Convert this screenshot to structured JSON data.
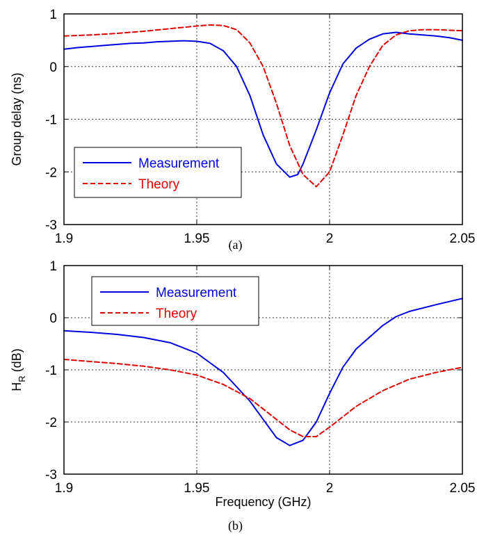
{
  "chart_data": [
    {
      "type": "line",
      "caption": "(a)",
      "xlabel": "",
      "ylabel": "Group delay (ns)",
      "xlim": [
        1.9,
        2.05
      ],
      "ylim": [
        -3,
        1
      ],
      "xticks": [
        1.9,
        1.95,
        2,
        2.05
      ],
      "xtick_labels": [
        "1.9",
        "1.95",
        "2",
        "2.05"
      ],
      "yticks": [
        -3,
        -2,
        -1,
        0,
        1
      ],
      "ytick_labels": [
        "-3",
        "-2",
        "-1",
        "0",
        "1"
      ],
      "grid": true,
      "legend_position": "lower-left",
      "series": [
        {
          "name": "Measurement",
          "color": "#0000dd",
          "style": "solid",
          "x": [
            1.9,
            1.905,
            1.91,
            1.915,
            1.92,
            1.925,
            1.93,
            1.935,
            1.94,
            1.945,
            1.95,
            1.955,
            1.96,
            1.965,
            1.97,
            1.975,
            1.98,
            1.985,
            1.988,
            1.99,
            1.995,
            2.0,
            2.005,
            2.01,
            2.015,
            2.02,
            2.025,
            2.03,
            2.035,
            2.04,
            2.045,
            2.05
          ],
          "y": [
            0.33,
            0.36,
            0.38,
            0.4,
            0.42,
            0.44,
            0.45,
            0.47,
            0.48,
            0.49,
            0.48,
            0.44,
            0.3,
            0.0,
            -0.55,
            -1.3,
            -1.85,
            -2.1,
            -2.05,
            -1.85,
            -1.2,
            -0.5,
            0.05,
            0.35,
            0.52,
            0.62,
            0.65,
            0.62,
            0.6,
            0.58,
            0.55,
            0.5
          ]
        },
        {
          "name": "Theory",
          "color": "#dd0000",
          "style": "dashed",
          "x": [
            1.9,
            1.91,
            1.92,
            1.93,
            1.94,
            1.95,
            1.955,
            1.96,
            1.965,
            1.97,
            1.975,
            1.98,
            1.985,
            1.99,
            1.995,
            2.0,
            2.005,
            2.01,
            2.015,
            2.02,
            2.025,
            2.03,
            2.035,
            2.04,
            2.05
          ],
          "y": [
            0.58,
            0.6,
            0.63,
            0.67,
            0.72,
            0.77,
            0.79,
            0.78,
            0.7,
            0.45,
            0.0,
            -0.7,
            -1.5,
            -2.05,
            -2.28,
            -2.0,
            -1.3,
            -0.55,
            0.0,
            0.4,
            0.6,
            0.68,
            0.7,
            0.7,
            0.68
          ]
        }
      ]
    },
    {
      "type": "line",
      "caption": "(b)",
      "xlabel": "Frequency (GHz)",
      "ylabel": "H",
      "ylabel_sub": "R",
      "ylabel_suffix": " (dB)",
      "xlim": [
        1.9,
        2.05
      ],
      "ylim": [
        -3,
        1
      ],
      "xticks": [
        1.9,
        1.95,
        2,
        2.05
      ],
      "xtick_labels": [
        "1.9",
        "1.95",
        "2",
        "2.05"
      ],
      "yticks": [
        -3,
        -2,
        -1,
        0,
        1
      ],
      "ytick_labels": [
        "-3",
        "-2",
        "-1",
        "0",
        "1"
      ],
      "grid": true,
      "legend_position": "top-left",
      "series": [
        {
          "name": "Measurement",
          "color": "#0000dd",
          "style": "solid",
          "x": [
            1.9,
            1.91,
            1.92,
            1.93,
            1.94,
            1.95,
            1.96,
            1.97,
            1.975,
            1.98,
            1.985,
            1.99,
            1.995,
            2.0,
            2.005,
            2.01,
            2.02,
            2.025,
            2.03,
            2.04,
            2.05
          ],
          "y": [
            -0.25,
            -0.28,
            -0.32,
            -0.38,
            -0.48,
            -0.68,
            -1.05,
            -1.6,
            -1.95,
            -2.3,
            -2.45,
            -2.35,
            -2.0,
            -1.45,
            -0.95,
            -0.6,
            -0.15,
            0.02,
            0.12,
            0.25,
            0.37
          ]
        },
        {
          "name": "Theory",
          "color": "#dd0000",
          "style": "dashed",
          "x": [
            1.9,
            1.91,
            1.92,
            1.93,
            1.94,
            1.95,
            1.96,
            1.97,
            1.98,
            1.985,
            1.99,
            1.995,
            2.0,
            2.01,
            2.02,
            2.03,
            2.04,
            2.05
          ],
          "y": [
            -0.8,
            -0.84,
            -0.88,
            -0.93,
            -1.0,
            -1.1,
            -1.28,
            -1.55,
            -1.95,
            -2.15,
            -2.28,
            -2.28,
            -2.1,
            -1.7,
            -1.4,
            -1.18,
            -1.05,
            -0.95
          ]
        }
      ]
    }
  ]
}
